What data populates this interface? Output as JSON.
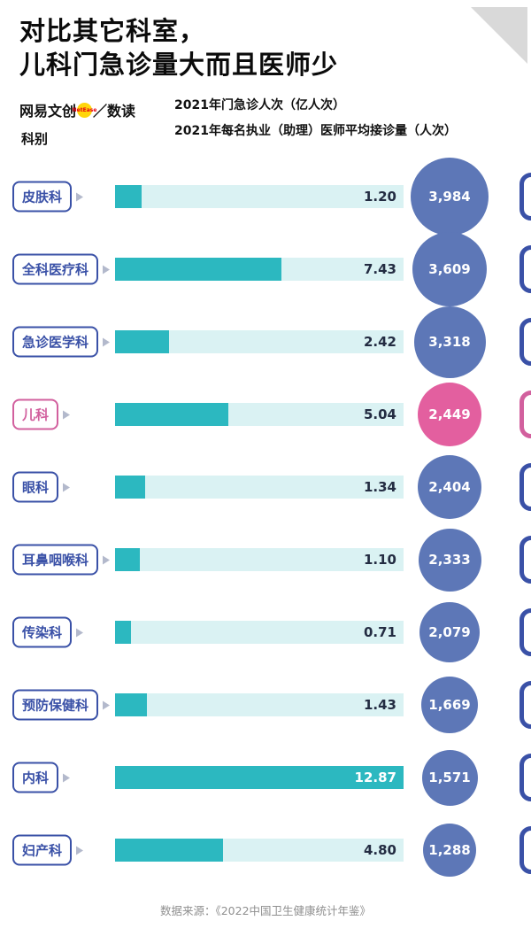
{
  "title": {
    "line1": "对比其它科室，",
    "line2": "儿科门急诊量大而且医师少"
  },
  "brand": {
    "name": "网易文创",
    "netease": "NetEase",
    "rest": "／数读"
  },
  "column_header": "科别",
  "legend": [
    {
      "shape": "square",
      "color": "#2cb8c0",
      "label": "2021年门急诊人次（亿人次）"
    },
    {
      "shape": "circle",
      "color": "#5d77b7",
      "label": "2021年每名执业（助理）医师平均接诊量（人次）"
    }
  ],
  "footer": "数据来源：《2022中国卫生健康统计年鉴》",
  "colors": {
    "teal": "#2cb8c0",
    "teal_light": "#daf2f3",
    "blue": "#3a51a7",
    "circle_blue": "#5d77b7",
    "pink": "#d2609e",
    "pink_circle": "#e35f9f",
    "value_text": "#232c42",
    "triangle_gray": "#d9d9d9"
  },
  "chart_data": {
    "type": "bar",
    "orientation": "horizontal",
    "title": "对比其它科室，儿科门急诊量大而且医师少",
    "categories": [
      "皮肤科",
      "全科医疗科",
      "急诊医学科",
      "儿科",
      "眼科",
      "耳鼻咽喉科",
      "传染科",
      "预防保健科",
      "内科",
      "妇产科"
    ],
    "series": [
      {
        "name": "2021年门急诊人次（亿人次）",
        "values": [
          1.2,
          7.43,
          2.42,
          5.04,
          1.34,
          1.1,
          0.71,
          1.43,
          12.87,
          4.8
        ]
      },
      {
        "name": "2021年每名执业（助理）医师平均接诊量（人次）",
        "values": [
          3984,
          3609,
          3318,
          2449,
          2404,
          2333,
          2079,
          1669,
          1571,
          1288
        ]
      }
    ],
    "highlight_category": "儿科",
    "legend_position": "top",
    "source": "数据来源：《2022中国卫生健康统计年鉴》"
  },
  "rows": [
    {
      "dept": "皮肤科",
      "visits": "1.20",
      "visits_num": 1.2,
      "per_doctor": "3,984",
      "per_doctor_num": 3984,
      "highlight": false
    },
    {
      "dept": "全科医疗科",
      "visits": "7.43",
      "visits_num": 7.43,
      "per_doctor": "3,609",
      "per_doctor_num": 3609,
      "highlight": false
    },
    {
      "dept": "急诊医学科",
      "visits": "2.42",
      "visits_num": 2.42,
      "per_doctor": "3,318",
      "per_doctor_num": 3318,
      "highlight": false
    },
    {
      "dept": "儿科",
      "visits": "5.04",
      "visits_num": 5.04,
      "per_doctor": "2,449",
      "per_doctor_num": 2449,
      "highlight": true
    },
    {
      "dept": "眼科",
      "visits": "1.34",
      "visits_num": 1.34,
      "per_doctor": "2,404",
      "per_doctor_num": 2404,
      "highlight": false
    },
    {
      "dept": "耳鼻咽喉科",
      "visits": "1.10",
      "visits_num": 1.1,
      "per_doctor": "2,333",
      "per_doctor_num": 2333,
      "highlight": false
    },
    {
      "dept": "传染科",
      "visits": "0.71",
      "visits_num": 0.71,
      "per_doctor": "2,079",
      "per_doctor_num": 2079,
      "highlight": false
    },
    {
      "dept": "预防保健科",
      "visits": "1.43",
      "visits_num": 1.43,
      "per_doctor": "1,669",
      "per_doctor_num": 1669,
      "highlight": false
    },
    {
      "dept": "内科",
      "visits": "12.87",
      "visits_num": 12.87,
      "per_doctor": "1,571",
      "per_doctor_num": 1571,
      "highlight": false
    },
    {
      "dept": "妇产科",
      "visits": "4.80",
      "visits_num": 4.8,
      "per_doctor": "1,288",
      "per_doctor_num": 1288,
      "highlight": false
    }
  ]
}
